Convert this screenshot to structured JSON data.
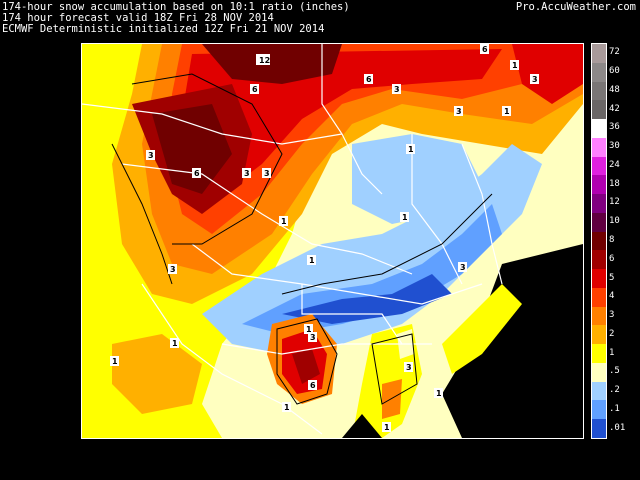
{
  "header": {
    "line1": "174-hour snow accumulation based on 10:1 ratio (inches)",
    "line2": "174 hour forecast valid 18Z Fri 28 NOV 2014",
    "line3": "ECMWF Deterministic initialized 12Z Fri 21 NOV 2014",
    "brand": "Pro.AccuWeather.com"
  },
  "map": {
    "background_color": "#000000",
    "border_color": "#ffffff",
    "contour_labels": [
      "12",
      "6",
      "3",
      "6",
      "3",
      "3",
      "6",
      "3",
      "3",
      "1",
      "1",
      "3",
      "1",
      "1",
      "1",
      "3",
      "1",
      "1",
      "1",
      "1",
      "3",
      "3",
      "6",
      "1",
      "1",
      "3",
      "1",
      "6"
    ]
  },
  "legend": {
    "items": [
      {
        "label": "72",
        "color": "#a89a9a"
      },
      {
        "label": "60",
        "color": "#8c8888"
      },
      {
        "label": "48",
        "color": "#7a7676"
      },
      {
        "label": "42",
        "color": "#6a6666"
      },
      {
        "label": "36",
        "color": "#ffffff"
      },
      {
        "label": "30",
        "color": "#ff80ff"
      },
      {
        "label": "24",
        "color": "#e020e0"
      },
      {
        "label": "18",
        "color": "#b000b0"
      },
      {
        "label": "12",
        "color": "#800080"
      },
      {
        "label": "10",
        "color": "#600040"
      },
      {
        "label": "8",
        "color": "#700000"
      },
      {
        "label": "6",
        "color": "#a00000"
      },
      {
        "label": "5",
        "color": "#e00000"
      },
      {
        "label": "4",
        "color": "#ff4000"
      },
      {
        "label": "3",
        "color": "#ff8000"
      },
      {
        "label": "2",
        "color": "#ffb000"
      },
      {
        "label": "1",
        "color": "#ffff00"
      },
      {
        "label": ".5",
        "color": "#ffffc0"
      },
      {
        "label": ".2",
        "color": "#a0d0ff"
      },
      {
        "label": ".1",
        "color": "#60a0ff"
      },
      {
        "label": ".01",
        "color": "#2050d0"
      }
    ]
  }
}
